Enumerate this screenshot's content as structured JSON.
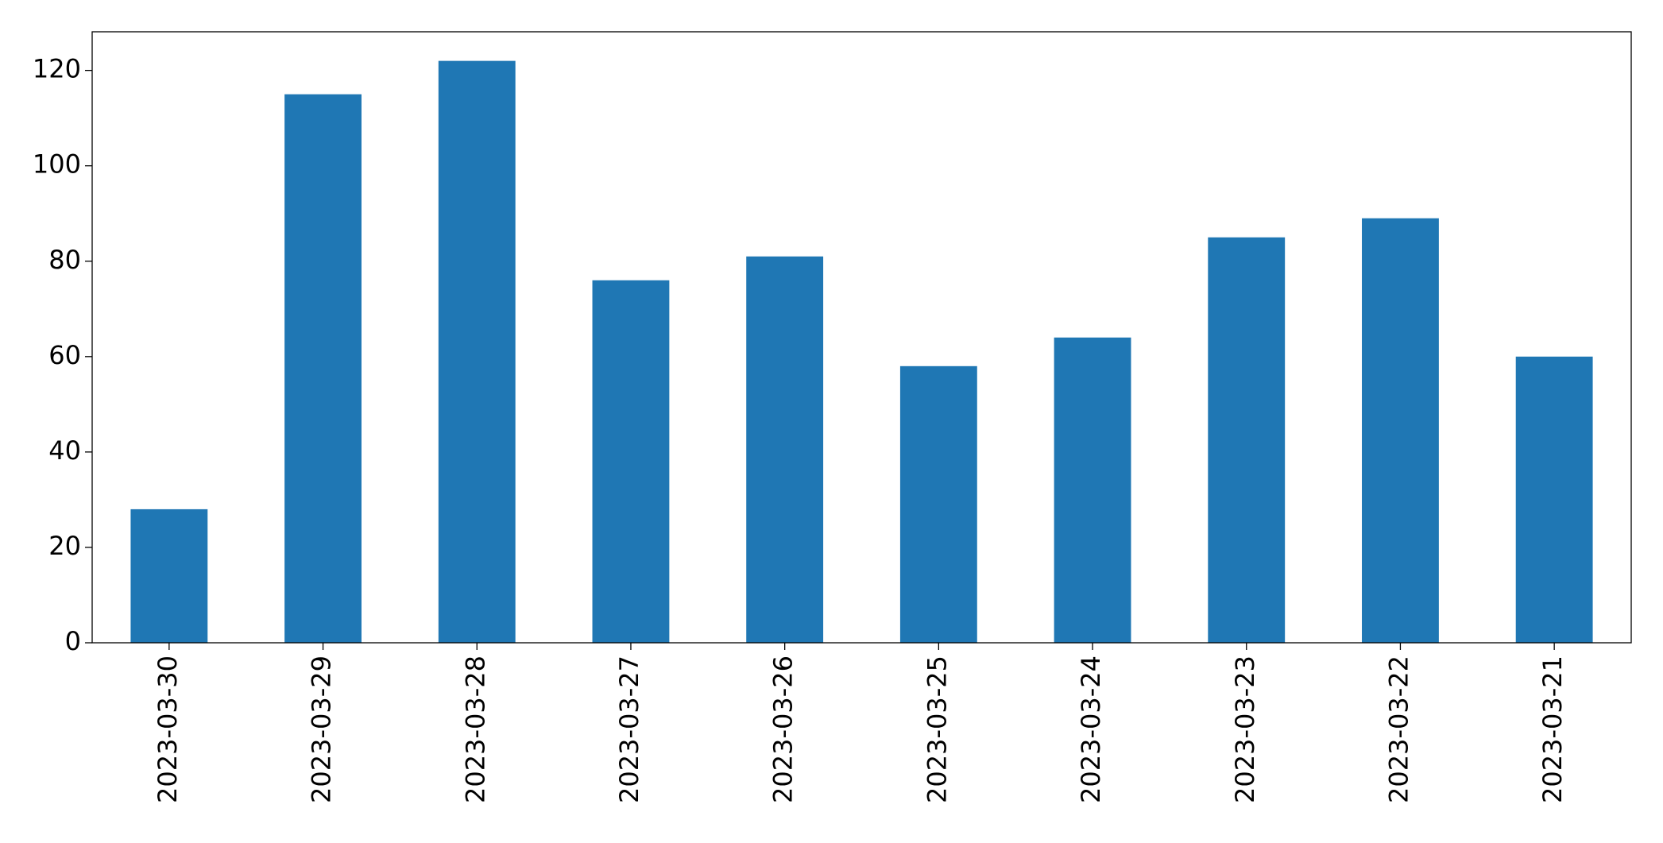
{
  "chart_data": {
    "type": "bar",
    "categories": [
      "2023-03-30",
      "2023-03-29",
      "2023-03-28",
      "2023-03-27",
      "2023-03-26",
      "2023-03-25",
      "2023-03-24",
      "2023-03-23",
      "2023-03-22",
      "2023-03-21"
    ],
    "values": [
      28,
      115,
      122,
      76,
      81,
      58,
      64,
      85,
      89,
      60
    ],
    "color": "#1f77b4",
    "ylim": [
      0,
      128.1
    ],
    "yticks": [
      0,
      20,
      40,
      60,
      80,
      100,
      120
    ],
    "grid": false
  }
}
